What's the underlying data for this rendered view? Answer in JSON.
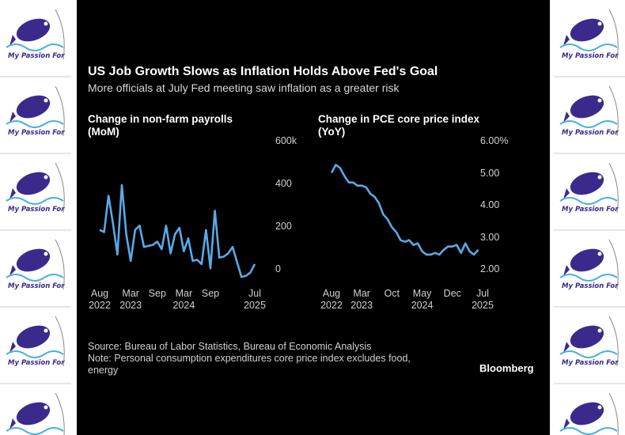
{
  "watermark": "My Passion For",
  "title": "US Job Growth Slows as Inflation Holds Above Fed's Goal",
  "subtitle": "More officials at July Fed meeting saw inflation as a greater risk",
  "source": "Source: Bureau of Labor Statistics, Bureau of Economic Analysis",
  "note": "Note: Personal consumption expenditures core price index excludes food, energy",
  "brand": "Bloomberg",
  "chart_data": [
    {
      "type": "line",
      "title": "Change in non-farm payrolls (MoM)",
      "color": "#5aa9e6",
      "categories": [
        "Aug\n2022",
        null,
        null,
        null,
        null,
        null,
        null,
        "Mar\n2023",
        null,
        null,
        null,
        null,
        null,
        "Sep",
        null,
        null,
        null,
        null,
        null,
        "Mar\n2024",
        null,
        null,
        null,
        null,
        null,
        "Sep",
        null,
        null,
        null,
        null,
        null,
        null,
        null,
        null,
        null,
        "Jul\n2025"
      ],
      "values": [
        190,
        180,
        350,
        220,
        75,
        400,
        170,
        45,
        190,
        210,
        110,
        115,
        120,
        135,
        100,
        210,
        80,
        170,
        200,
        90,
        150,
        45,
        50,
        30,
        190,
        10,
        280,
        60,
        65,
        80,
        110,
        40,
        -30,
        -25,
        -10,
        30
      ],
      "ylim": [
        -50,
        600
      ],
      "yticks": [
        0,
        200,
        400,
        {
          "value": 600,
          "label": "600k"
        }
      ]
    },
    {
      "type": "line",
      "title": "Change in PCE core price index (YoY)",
      "color": "#5aa9e6",
      "categories": [
        "Aug\n2022",
        null,
        null,
        null,
        null,
        null,
        null,
        "Mar\n2023",
        null,
        null,
        null,
        null,
        null,
        null,
        "Oct",
        null,
        null,
        null,
        null,
        null,
        null,
        "May\n2024",
        null,
        null,
        null,
        null,
        null,
        null,
        "Dec",
        null,
        null,
        null,
        null,
        null,
        null,
        "Jul\n2025"
      ],
      "values": [
        5.05,
        5.3,
        5.2,
        4.95,
        4.75,
        4.75,
        4.65,
        4.65,
        4.6,
        4.4,
        4.3,
        4.1,
        3.75,
        3.6,
        3.35,
        3.2,
        2.95,
        2.9,
        2.95,
        2.8,
        2.85,
        2.6,
        2.5,
        2.5,
        2.55,
        2.5,
        2.65,
        2.75,
        2.75,
        2.8,
        2.55,
        2.85,
        2.6,
        2.5,
        2.65,
        null
      ],
      "ylim": [
        1.7,
        6.0
      ],
      "yticks": [
        {
          "value": 2,
          "label": "2.00"
        },
        {
          "value": 3,
          "label": "3.00"
        },
        {
          "value": 4,
          "label": "4.00"
        },
        {
          "value": 5,
          "label": "5.00"
        },
        {
          "value": 6,
          "label": "6.00%"
        }
      ]
    }
  ]
}
